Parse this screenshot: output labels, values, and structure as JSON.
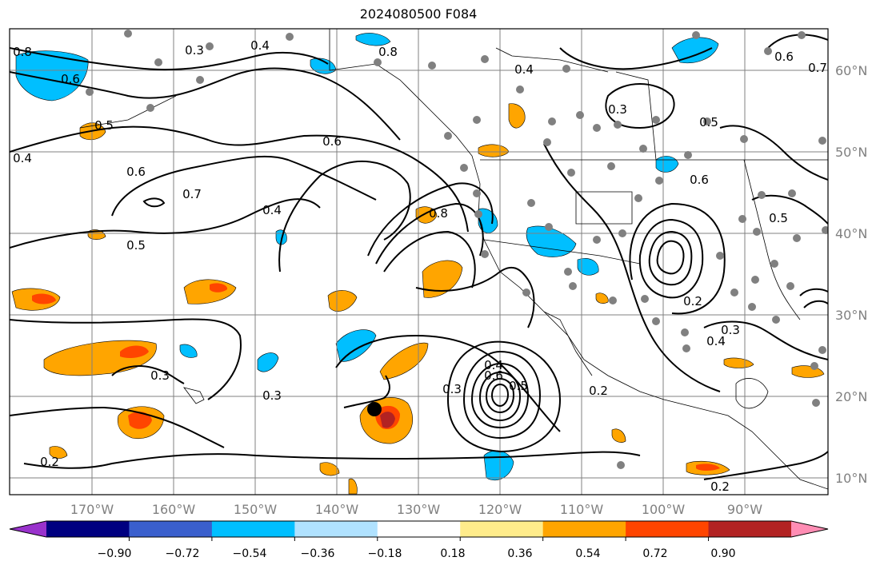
{
  "title": "2024080500 F084",
  "map": {
    "lon_labels": [
      "170°W",
      "160°W",
      "150°W",
      "140°W",
      "130°W",
      "120°W",
      "110°W",
      "100°W",
      "90°W"
    ],
    "lat_labels": [
      "60°N",
      "50°N",
      "40°N",
      "30°N",
      "20°N",
      "10°N"
    ],
    "contour_labels": [
      "0.8",
      "0.6",
      "0.5",
      "0.4",
      "0.3",
      "0.4",
      "0.6",
      "0.7",
      "0.6",
      "0.5",
      "0.3",
      "0.4",
      "0.2",
      "0.3",
      "0.4",
      "0.6",
      "0.5",
      "0.8",
      "0.3",
      "0.2",
      "0.5",
      "0.6",
      "0.3",
      "0.6",
      "0.4",
      "0.7",
      "0.8",
      "0.2",
      "0.5",
      "0.3",
      "0.4",
      "0.2"
    ],
    "storm_marker": "black-dot",
    "colors": {
      "land_border": "#000000",
      "grid": "#808080",
      "station_dots": "#808080"
    }
  },
  "colorbar": {
    "tick_labels": [
      "−0.90",
      "−0.72",
      "−0.54",
      "−0.36",
      "−0.18",
      "0.18",
      "0.36",
      "0.54",
      "0.72",
      "0.90"
    ],
    "colors": [
      "#9932cc",
      "#000080",
      "#3a5fcd",
      "#00bfff",
      "#b0e2ff",
      "#ffffff",
      "#ffec8b",
      "#ffa500",
      "#ff4500",
      "#b22222",
      "#ff8db4"
    ]
  }
}
